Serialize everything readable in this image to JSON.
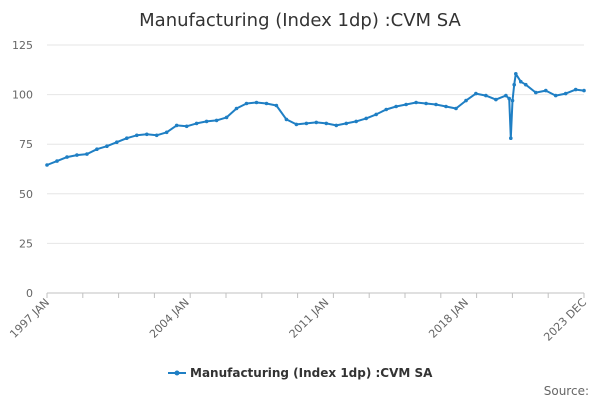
{
  "chart_data": {
    "type": "line",
    "title": "Manufacturing (Index 1dp) :CVM SA",
    "xlabel": "",
    "ylabel": "",
    "x_range": [
      "1997 JAN",
      "2023 DEC"
    ],
    "ylim": [
      0,
      125
    ],
    "y_ticks": [
      "0",
      "25",
      "50",
      "75",
      "100",
      "125"
    ],
    "x_ticks": [
      "1997 JAN",
      "2004 JAN",
      "2011 JAN",
      "2018 JAN",
      "2023 DEC"
    ],
    "grid": "horizontal",
    "legend_position": "bottom",
    "series_color": "#1f7fc4",
    "source_label": "Source:",
    "series": [
      {
        "name": "Manufacturing (Index 1dp) :CVM SA",
        "x": [
          "1997-01",
          "1997-07",
          "1998-01",
          "1998-07",
          "1999-01",
          "1999-07",
          "2000-01",
          "2000-07",
          "2001-01",
          "2001-07",
          "2002-01",
          "2002-07",
          "2003-01",
          "2003-07",
          "2004-01",
          "2004-07",
          "2005-01",
          "2005-07",
          "2006-01",
          "2006-07",
          "2007-01",
          "2007-07",
          "2008-01",
          "2008-07",
          "2009-01",
          "2009-07",
          "2010-01",
          "2010-07",
          "2011-01",
          "2011-07",
          "2012-01",
          "2012-07",
          "2013-01",
          "2013-07",
          "2014-01",
          "2014-07",
          "2015-01",
          "2015-07",
          "2016-01",
          "2016-07",
          "2017-01",
          "2017-07",
          "2018-01",
          "2018-07",
          "2019-01",
          "2019-07",
          "2020-01",
          "2020-03",
          "2020-04",
          "2020-05",
          "2020-06",
          "2020-07",
          "2020-10",
          "2021-01",
          "2021-07",
          "2022-01",
          "2022-07",
          "2023-01",
          "2023-07",
          "2023-12"
        ],
        "values": [
          64.5,
          66.5,
          68.5,
          69.5,
          70.0,
          72.5,
          74.0,
          76.0,
          78.0,
          79.5,
          80.0,
          79.5,
          81.0,
          84.5,
          84.0,
          85.5,
          86.5,
          87.0,
          88.5,
          93.0,
          95.5,
          96.0,
          95.5,
          94.5,
          87.5,
          85.0,
          85.5,
          86.0,
          85.5,
          84.5,
          85.5,
          86.5,
          88.0,
          90.0,
          92.5,
          94.0,
          95.0,
          96.0,
          95.5,
          95.0,
          94.0,
          93.0,
          97.0,
          100.5,
          99.5,
          97.5,
          99.5,
          98.0,
          78.0,
          97.0,
          105.0,
          110.5,
          106.5,
          105.0,
          101.0,
          102.0,
          99.5,
          100.5,
          102.5,
          102.0
        ]
      }
    ]
  }
}
